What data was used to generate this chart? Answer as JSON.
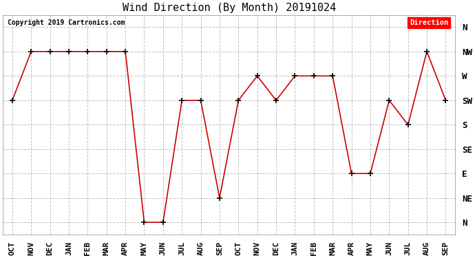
{
  "title": "Wind Direction (By Month) 20191024",
  "copyright": "Copyright 2019 Cartronics.com",
  "legend_label": "Direction",
  "legend_bg": "#ff0000",
  "legend_text_color": "#ffffff",
  "x_labels": [
    "OCT",
    "NOV",
    "DEC",
    "JAN",
    "FEB",
    "MAR",
    "APR",
    "MAY",
    "JUN",
    "JUL",
    "AUG",
    "SEP",
    "OCT",
    "NOV",
    "DEC",
    "JAN",
    "FEB",
    "MAR",
    "APR",
    "MAY",
    "JUN",
    "JUL",
    "AUG",
    "SEP"
  ],
  "y_labels": [
    "N",
    "NE",
    "E",
    "SE",
    "S",
    "SW",
    "W",
    "NW",
    "N"
  ],
  "y_values": [
    0,
    1,
    2,
    3,
    4,
    5,
    6,
    7,
    8
  ],
  "data_values": [
    5,
    7,
    7,
    7,
    7,
    7,
    7,
    0,
    0,
    5,
    5,
    1,
    5,
    6,
    5,
    6,
    6,
    6,
    2,
    2,
    5,
    4,
    7,
    5
  ],
  "line_color": "#cc0000",
  "marker": "+",
  "marker_color": "#000000",
  "bg_color": "#ffffff",
  "grid_color": "#c0c0c0",
  "title_fontsize": 11,
  "tick_fontsize": 8,
  "copyright_fontsize": 7
}
